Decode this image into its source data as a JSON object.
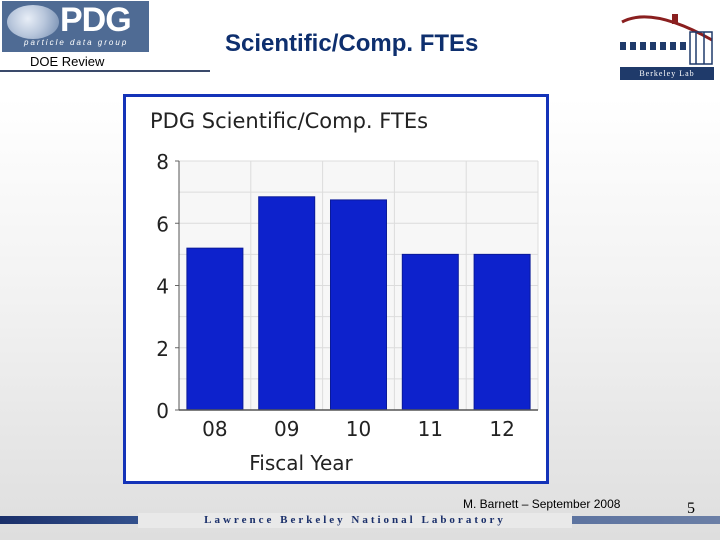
{
  "header": {
    "logo_wordmark": "PDG",
    "logo_tagline": "particle data group",
    "subtitle": "DOE Review",
    "slide_title": "Scientific/Comp. FTEs",
    "lab_logo_text": "Berkeley Lab"
  },
  "footer": {
    "credit": "M. Barnett – September 2008",
    "page_number": "5",
    "lab_name": "Lawrence Berkeley National Laboratory"
  },
  "colors": {
    "bar": "#0d22cc",
    "frame": "#1433b8",
    "title": "#0e2f6e"
  },
  "chart_data": {
    "type": "bar",
    "title": "PDG Scientific/Comp. FTEs",
    "xlabel": "Fiscal Year",
    "ylabel": "",
    "categories": [
      "08",
      "09",
      "10",
      "11",
      "12"
    ],
    "values": [
      5.2,
      6.85,
      6.75,
      5.0,
      5.0
    ],
    "ylim": [
      0,
      8
    ],
    "yticks": [
      "0",
      "2",
      "4",
      "6",
      "8"
    ],
    "grid": true,
    "legend": "none"
  }
}
